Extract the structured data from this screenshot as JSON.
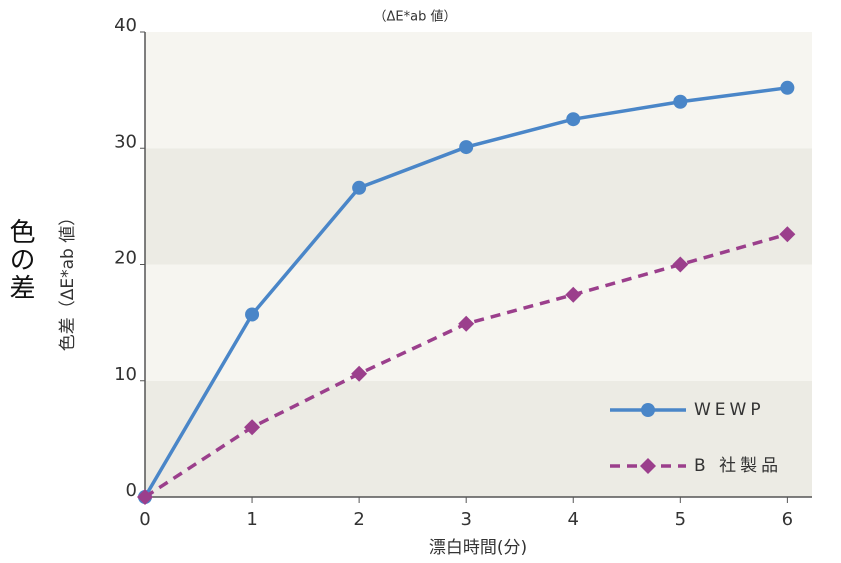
{
  "side_label": "色の差",
  "chart_data": {
    "type": "line",
    "title": "（ΔE*ab 値）",
    "y_label": "色差（ΔE*ab 値）",
    "x_label": "漂白時間(分)",
    "x": [
      0,
      1,
      2,
      3,
      4,
      5,
      6
    ],
    "series": [
      {
        "name": "WEWP",
        "color": "#4a86c8",
        "marker": "circle",
        "dash": false,
        "values": [
          0,
          15.7,
          26.6,
          30.1,
          32.5,
          34,
          35.2
        ]
      },
      {
        "name": "B 社製品",
        "color": "#9b3f8c",
        "marker": "diamond",
        "dash": true,
        "values": [
          0,
          6.0,
          10.6,
          14.9,
          17.4,
          20,
          22.6
        ]
      }
    ],
    "xlim": [
      0,
      6.23
    ],
    "xticks": [
      0,
      1,
      2,
      3,
      4,
      5,
      6
    ],
    "ylim": [
      0,
      40
    ],
    "yticks": [
      0,
      10,
      20,
      30,
      40
    ],
    "bands": true,
    "legend": "lower right"
  }
}
